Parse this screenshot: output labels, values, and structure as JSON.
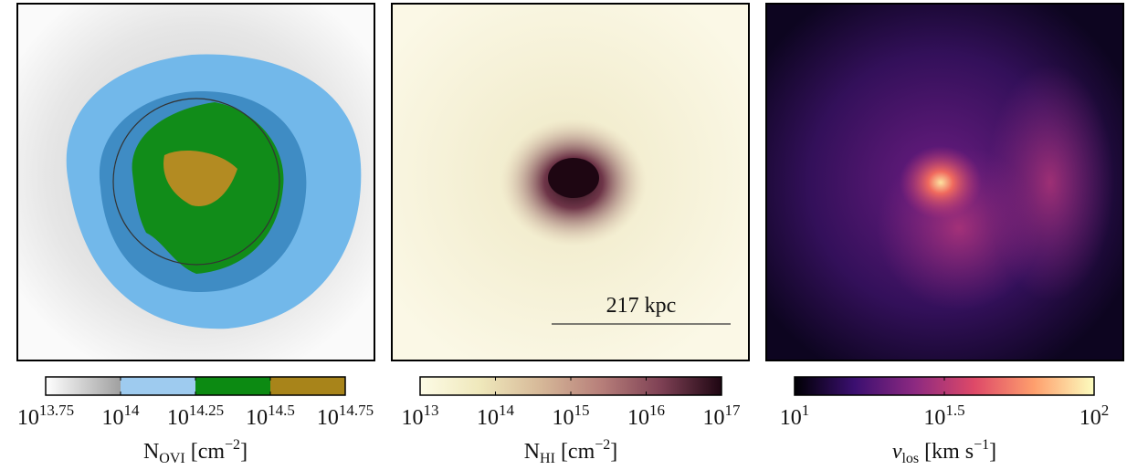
{
  "panels": [
    {
      "colorbar": {
        "lim": [
          13.75,
          14.75
        ],
        "ticks": [
          {
            "value": 13.75,
            "base": "10",
            "exponent": "13.75"
          },
          {
            "value": 14,
            "base": "10",
            "exponent": "14"
          },
          {
            "value": 14.25,
            "base": "10",
            "exponent": "14.25"
          },
          {
            "value": 14.5,
            "base": "10",
            "exponent": "14.5"
          },
          {
            "value": 14.75,
            "base": "10",
            "exponent": "14.75"
          }
        ],
        "segments": [
          "#ffffff",
          "#9ecbef",
          "#0c8a12",
          "#a8841a"
        ],
        "label": {
          "base": "N",
          "sub": "OVI",
          "unit": " [cm",
          "sup": "−2",
          "end": "]"
        }
      }
    },
    {
      "colorbar": {
        "lim": [
          13,
          17
        ],
        "ticks": [
          {
            "value": 13,
            "base": "10",
            "exponent": "13"
          },
          {
            "value": 14,
            "base": "10",
            "exponent": "14"
          },
          {
            "value": 15,
            "base": "10",
            "exponent": "15"
          },
          {
            "value": 16,
            "base": "10",
            "exponent": "16"
          },
          {
            "value": 17,
            "base": "10",
            "exponent": "17"
          }
        ],
        "colormap": [
          "#fdfbe6",
          "#efe8bb",
          "#d6b898",
          "#b77f7a",
          "#7e4054",
          "#1e0612"
        ],
        "label": {
          "base": "N",
          "sub": "HI",
          "unit": " [cm",
          "sup": "−2",
          "end": "]"
        }
      },
      "scale_bar": "217 kpc"
    },
    {
      "colorbar": {
        "lim": [
          1,
          2
        ],
        "ticks": [
          {
            "value": 1,
            "base": "10",
            "exponent": "1"
          },
          {
            "value": 1.5,
            "base": "10",
            "exponent": "1.5"
          },
          {
            "value": 2,
            "base": "10",
            "exponent": "2"
          }
        ],
        "colormap": [
          "#000004",
          "#3b0f70",
          "#8c2981",
          "#de4968",
          "#fe9f6d",
          "#fcfdbf"
        ],
        "label": {
          "base": "v",
          "sub": "los",
          "unit": " [km s",
          "sup": "−1",
          "end": "]"
        }
      }
    }
  ]
}
